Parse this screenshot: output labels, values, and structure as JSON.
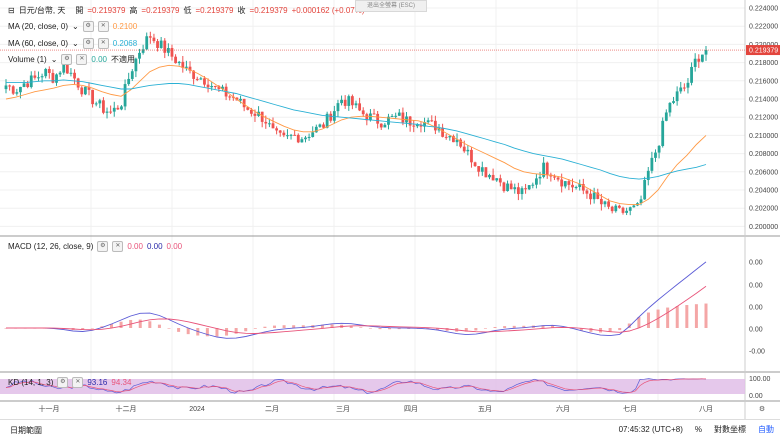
{
  "header": {
    "symbol": "日元/台幣, 天",
    "open_label": "開",
    "open": "=0.219379",
    "high_label": "高",
    "high": "=0.219379",
    "low_label": "低",
    "low": "=0.219379",
    "close_label": "收",
    "close": "=0.219379",
    "change": "+0.000162 (+0.07%)",
    "tooltip": "退出全螢幕 (ESC)"
  },
  "legends": {
    "ma20": {
      "label": "MA (20, close, 0)",
      "value": "0.2100",
      "color": "#ff9944"
    },
    "ma60": {
      "label": "MA (60, close, 0)",
      "value": "0.2068",
      "color": "#2ab0d4"
    },
    "volume": {
      "label": "Volume (1)",
      "value": "0.00",
      "extra": "不適用"
    },
    "macd": {
      "label": "MACD (12, 26, close, 9)",
      "v1": "0.00",
      "v2": "0.00",
      "v3": "0.00"
    },
    "kd": {
      "label": "KD (14, 1, 3)",
      "k": "93.16",
      "d": "94.34"
    }
  },
  "price_axis": {
    "ticks": [
      "0.224000",
      "0.222000",
      "0.220000",
      "0.218000",
      "0.216000",
      "0.214000",
      "0.212000",
      "0.210000",
      "0.208000",
      "0.206000",
      "0.204000",
      "0.202000",
      "0.200000"
    ],
    "last_label": "0.219379"
  },
  "macd_axis": {
    "ticks": [
      "0.00",
      "0.00",
      "0.00",
      "0.00",
      "-0.00",
      "-0.00"
    ]
  },
  "kd_axis": {
    "ticks": [
      "100.00",
      "0.00"
    ]
  },
  "time_axis": {
    "ticks": [
      "十一月",
      "十二月",
      "2024",
      "二月",
      "三月",
      "四月",
      "五月",
      "六月",
      "七月",
      "八月"
    ]
  },
  "bottom": {
    "range": "日期範圍",
    "time": "07:45:32 (UTC+8)",
    "pct": "%",
    "log": "對數坐標",
    "auto": "自動"
  },
  "colors": {
    "up": "#26a69a",
    "down": "#ef5350",
    "ma20": "#ff9944",
    "ma60": "#2ab0d4",
    "macd": "#5b5bd6",
    "signal": "#e8547a",
    "hist": "#f4a6a6",
    "k": "#5b5bd6",
    "d": "#e8547a",
    "kdbg": "#e1bee7"
  },
  "chart_data": {
    "type": "candlestick",
    "title": "日元/台幣, 天",
    "ylim": [
      0.199,
      0.2245
    ],
    "x_ticks": [
      "十一月",
      "十二月",
      "2024",
      "二月",
      "三月",
      "四月",
      "五月",
      "六月",
      "七月",
      "八月"
    ],
    "close_path": [
      0.2155,
      0.215,
      0.2158,
      0.2162,
      0.217,
      0.2163,
      0.2178,
      0.2165,
      0.215,
      0.214,
      0.213,
      0.2125,
      0.2135,
      0.217,
      0.2195,
      0.221,
      0.22,
      0.219,
      0.218,
      0.217,
      0.2165,
      0.216,
      0.215,
      0.2145,
      0.214,
      0.213,
      0.2125,
      0.2118,
      0.21,
      0.2095,
      0.21,
      0.2098,
      0.2105,
      0.211,
      0.2125,
      0.214,
      0.2135,
      0.2125,
      0.212,
      0.2115,
      0.2118,
      0.212,
      0.2115,
      0.2118,
      0.2112,
      0.211,
      0.21,
      0.2098,
      0.2082,
      0.207,
      0.206,
      0.2055,
      0.2045,
      0.204,
      0.2035,
      0.205,
      0.2065,
      0.206,
      0.205,
      0.2045,
      0.204,
      0.2035,
      0.2025,
      0.2018,
      0.2015,
      0.2018,
      0.202,
      0.206,
      0.209,
      0.213,
      0.2145,
      0.2155,
      0.2185,
      0.2194
    ],
    "ma20_path": [
      0.214,
      0.2142,
      0.2145,
      0.2148,
      0.215,
      0.2152,
      0.2155,
      0.2156,
      0.2155,
      0.2152,
      0.2148,
      0.2145,
      0.2143,
      0.215,
      0.216,
      0.217,
      0.2175,
      0.2177,
      0.2176,
      0.2173,
      0.2168,
      0.2162,
      0.2155,
      0.2148,
      0.214,
      0.2133,
      0.2126,
      0.212,
      0.2115,
      0.211,
      0.2106,
      0.2104,
      0.2104,
      0.2107,
      0.2112,
      0.2117,
      0.212,
      0.2121,
      0.2121,
      0.212,
      0.2119,
      0.2118,
      0.2117,
      0.2116,
      0.2113,
      0.2108,
      0.2102,
      0.2096,
      0.209,
      0.2085,
      0.208,
      0.2075,
      0.207,
      0.2064,
      0.206,
      0.2058,
      0.2057,
      0.2056,
      0.2054,
      0.205,
      0.2046,
      0.204,
      0.2034,
      0.2028,
      0.2025,
      0.2024,
      0.2024,
      0.203,
      0.204,
      0.2055,
      0.2068,
      0.2078,
      0.209,
      0.21
    ],
    "ma60_path": [
      0.2158,
      0.2158,
      0.2158,
      0.2159,
      0.216,
      0.216,
      0.2161,
      0.216,
      0.2159,
      0.2157,
      0.2155,
      0.2153,
      0.2151,
      0.2151,
      0.2153,
      0.2155,
      0.2156,
      0.2157,
      0.2157,
      0.2156,
      0.2154,
      0.2152,
      0.215,
      0.2148,
      0.2146,
      0.2143,
      0.214,
      0.2137,
      0.2134,
      0.2131,
      0.2128,
      0.2126,
      0.2124,
      0.2122,
      0.2121,
      0.212,
      0.2119,
      0.2118,
      0.2117,
      0.2116,
      0.2115,
      0.2114,
      0.2113,
      0.2112,
      0.211,
      0.2109,
      0.2107,
      0.2105,
      0.2102,
      0.2099,
      0.2096,
      0.2093,
      0.209,
      0.2086,
      0.2083,
      0.208,
      0.2078,
      0.2076,
      0.2074,
      0.2071,
      0.2068,
      0.2065,
      0.2062,
      0.2058,
      0.2055,
      0.2053,
      0.2052,
      0.2053,
      0.2055,
      0.2058,
      0.2061,
      0.2063,
      0.2065,
      0.2068
    ]
  }
}
